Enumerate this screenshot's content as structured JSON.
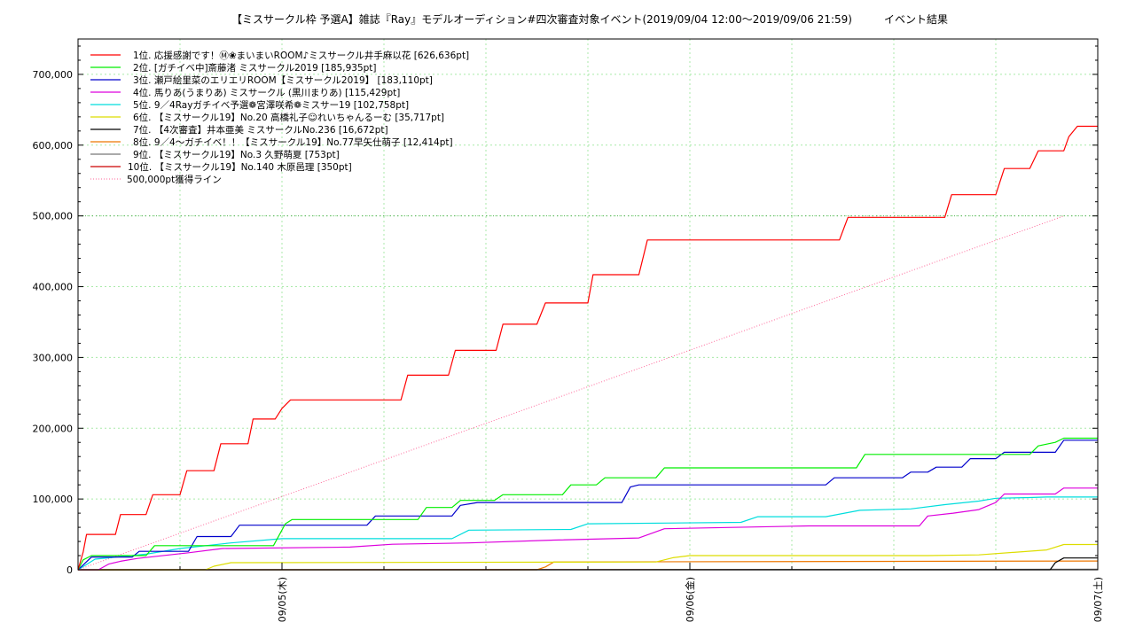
{
  "chart_data": {
    "type": "line",
    "title": "【ミスサークル枠 予選A】雑誌『Ray』モデルオーディション#四次審査対象イベント(2019/09/04 12:00～2019/09/06 21:59)　　　イベント結果",
    "xlabel": "",
    "ylabel": "",
    "x_unit": "hours since 2019/09/04 00:00",
    "xlim": [
      12,
      72
    ],
    "ylim": [
      0,
      750000
    ],
    "y_ticks": [
      0,
      100000,
      200000,
      300000,
      400000,
      500000,
      600000,
      700000
    ],
    "y_tick_labels": [
      "0",
      "100,000",
      "200,000",
      "300,000",
      "400,000",
      "500,000",
      "600,000",
      "700,000"
    ],
    "x_ticks": [
      24,
      48,
      72
    ],
    "x_tick_labels": [
      "09/05(木)",
      "09/06(金)",
      "09/07(土)"
    ],
    "grid": true,
    "legend_position": "top-left",
    "reference_line": {
      "y": 500000
    },
    "series": [
      {
        "name": "1位. 応援感謝です！Ⓜ❀まいまいROOM♪ミスサークル井手麻以花 [626,636pt]",
        "color": "#ff0000",
        "points": [
          [
            12,
            0
          ],
          [
            12.3,
            25000
          ],
          [
            12.5,
            50000
          ],
          [
            14.2,
            50000
          ],
          [
            14.5,
            78000
          ],
          [
            16.0,
            78000
          ],
          [
            16.4,
            106000
          ],
          [
            18.0,
            106000
          ],
          [
            18.4,
            140000
          ],
          [
            20.0,
            140000
          ],
          [
            20.4,
            178000
          ],
          [
            22.0,
            178000
          ],
          [
            22.3,
            213000
          ],
          [
            23.6,
            213000
          ],
          [
            24.0,
            228000
          ],
          [
            24.5,
            240000
          ],
          [
            31.0,
            240000
          ],
          [
            31.4,
            275000
          ],
          [
            33.8,
            275000
          ],
          [
            34.2,
            310000
          ],
          [
            36.6,
            310000
          ],
          [
            37.0,
            347000
          ],
          [
            39.0,
            347000
          ],
          [
            39.5,
            377000
          ],
          [
            42.0,
            377000
          ],
          [
            42.3,
            417000
          ],
          [
            45.0,
            417000
          ],
          [
            45.5,
            466000
          ],
          [
            56.8,
            466000
          ],
          [
            57.3,
            498000
          ],
          [
            63.0,
            498000
          ],
          [
            63.4,
            530000
          ],
          [
            66.0,
            530000
          ],
          [
            66.5,
            567000
          ],
          [
            68.0,
            567000
          ],
          [
            68.5,
            592000
          ],
          [
            70.0,
            592000
          ],
          [
            70.3,
            612000
          ],
          [
            70.8,
            626636
          ],
          [
            72,
            626636
          ]
        ]
      },
      {
        "name": "2位. [ガチイベ中]斎藤渚 ミスサークル2019 [185,935pt]",
        "color": "#00ee00",
        "points": [
          [
            12,
            0
          ],
          [
            12.3,
            14000
          ],
          [
            12.8,
            20000
          ],
          [
            16.0,
            20000
          ],
          [
            16.5,
            34000
          ],
          [
            23.5,
            34000
          ],
          [
            24.2,
            65000
          ],
          [
            24.6,
            71000
          ],
          [
            32.0,
            71000
          ],
          [
            32.5,
            88000
          ],
          [
            34.0,
            88000
          ],
          [
            34.5,
            98000
          ],
          [
            36.5,
            98000
          ],
          [
            37.0,
            106000
          ],
          [
            40.5,
            106000
          ],
          [
            41.0,
            120000
          ],
          [
            42.5,
            120000
          ],
          [
            43.0,
            130000
          ],
          [
            46.0,
            130000
          ],
          [
            46.5,
            144000
          ],
          [
            57.8,
            144000
          ],
          [
            58.3,
            163000
          ],
          [
            68.0,
            163000
          ],
          [
            68.5,
            175000
          ],
          [
            69.5,
            180000
          ],
          [
            70.0,
            185935
          ],
          [
            72,
            185935
          ]
        ]
      },
      {
        "name": "3位. 瀬戸絵里菜のエリエリROOM【ミスサークル2019】 [183,110pt]",
        "color": "#0000cc",
        "points": [
          [
            12,
            0
          ],
          [
            12.8,
            18000
          ],
          [
            15.2,
            18000
          ],
          [
            15.6,
            26000
          ],
          [
            18.5,
            26000
          ],
          [
            19.0,
            47000
          ],
          [
            21.0,
            47000
          ],
          [
            21.5,
            63000
          ],
          [
            29.0,
            63000
          ],
          [
            29.5,
            76000
          ],
          [
            34.0,
            76000
          ],
          [
            34.5,
            91000
          ],
          [
            35.5,
            95000
          ],
          [
            44.0,
            95000
          ],
          [
            44.5,
            117000
          ],
          [
            45.0,
            120000
          ],
          [
            56.0,
            120000
          ],
          [
            56.5,
            130000
          ],
          [
            60.5,
            130000
          ],
          [
            61.0,
            138000
          ],
          [
            62.0,
            138000
          ],
          [
            62.5,
            145000
          ],
          [
            64.0,
            145000
          ],
          [
            64.5,
            157000
          ],
          [
            66.0,
            157000
          ],
          [
            66.5,
            166000
          ],
          [
            69.5,
            166000
          ],
          [
            70.0,
            183110
          ],
          [
            72,
            183110
          ]
        ]
      },
      {
        "name": "4位. 馬りあ(うまりあ) ミスサークル (黒川まりあ) [115,429pt]",
        "color": "#dd00dd",
        "points": [
          [
            12,
            0
          ],
          [
            13.2,
            0
          ],
          [
            13.8,
            8000
          ],
          [
            14.5,
            12000
          ],
          [
            15.5,
            16000
          ],
          [
            18.5,
            24000
          ],
          [
            20.5,
            30000
          ],
          [
            28.0,
            32000
          ],
          [
            30.5,
            36000
          ],
          [
            35.0,
            38000
          ],
          [
            40.0,
            42000
          ],
          [
            45.0,
            45000
          ],
          [
            46.5,
            58000
          ],
          [
            55.0,
            62000
          ],
          [
            61.5,
            62000
          ],
          [
            62.0,
            76000
          ],
          [
            63.5,
            80000
          ],
          [
            65.0,
            85000
          ],
          [
            66.0,
            95000
          ],
          [
            66.5,
            107000
          ],
          [
            69.5,
            107000
          ],
          [
            70.0,
            115429
          ],
          [
            72,
            115429
          ]
        ]
      },
      {
        "name": "5位. 9／4Rayガチイベ予選❁宮澤咲希❁ミスサー19 [102,758pt]",
        "color": "#00dddd",
        "points": [
          [
            12,
            0
          ],
          [
            13.0,
            15000
          ],
          [
            16.0,
            22000
          ],
          [
            18.0,
            30000
          ],
          [
            21.0,
            38000
          ],
          [
            24.0,
            44000
          ],
          [
            34.0,
            44000
          ],
          [
            35.0,
            56000
          ],
          [
            41.0,
            57000
          ],
          [
            42.0,
            65000
          ],
          [
            51.0,
            67000
          ],
          [
            52.0,
            75000
          ],
          [
            56.0,
            75000
          ],
          [
            58.0,
            84000
          ],
          [
            61.0,
            86000
          ],
          [
            63.0,
            92000
          ],
          [
            65.0,
            97000
          ],
          [
            66.0,
            101000
          ],
          [
            68.0,
            102000
          ],
          [
            69.0,
            102758
          ],
          [
            72,
            102758
          ]
        ]
      },
      {
        "name": "6位. 【ミスサークル19】No.20 高橋礼子☺れいちゃんるーむ [35,717pt]",
        "color": "#dddd00",
        "points": [
          [
            12,
            0
          ],
          [
            19.5,
            0
          ],
          [
            20.0,
            5000
          ],
          [
            21.0,
            10000
          ],
          [
            46.0,
            11000
          ],
          [
            47.0,
            17000
          ],
          [
            48.0,
            20000
          ],
          [
            62.0,
            20000
          ],
          [
            65.0,
            21000
          ],
          [
            69.0,
            28000
          ],
          [
            70.0,
            35717
          ],
          [
            72,
            35717
          ]
        ]
      },
      {
        "name": "7位. 【4次審査】井本亜美 ミスサークルNo.236 [16,672pt]",
        "color": "#000000",
        "points": [
          [
            12,
            0
          ],
          [
            69.2,
            0
          ],
          [
            69.5,
            10000
          ],
          [
            70.0,
            16672
          ],
          [
            72,
            16672
          ]
        ]
      },
      {
        "name": "8位. 9／4～ガチイベ！！【ミスサークル19】No.77早矢仕萌子 [12,414pt]",
        "color": "#ee7700",
        "points": [
          [
            12,
            0
          ],
          [
            39.0,
            0
          ],
          [
            39.5,
            4000
          ],
          [
            40.0,
            11000
          ],
          [
            72,
            12414
          ]
        ]
      },
      {
        "name": "9位. 【ミスサークル19】No.3 久野萌夏 [753pt]",
        "color": "#777777",
        "points": [
          [
            12,
            0
          ],
          [
            36.0,
            0
          ],
          [
            50.0,
            400
          ],
          [
            72,
            753
          ]
        ]
      },
      {
        "name": "10位. 【ミスサークル19】No.140 木原邑理 [350pt]",
        "color": "#cc0000",
        "points": [
          [
            12,
            0
          ],
          [
            50.0,
            200
          ],
          [
            72,
            350
          ]
        ]
      },
      {
        "name": "500,000pt獲得ライン",
        "color": "#ff6699",
        "dotted": true,
        "points": [
          [
            12,
            0
          ],
          [
            70.0,
            500000
          ]
        ]
      }
    ]
  }
}
